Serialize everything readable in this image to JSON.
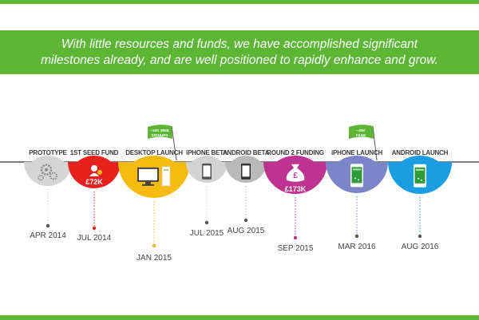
{
  "banner": {
    "line1": "With little resources and funds, we have accomplished significant",
    "line2": "milestones already, and are well positioned to rapidly enhance and grow."
  },
  "milestones": [
    {
      "label": "PROTOTYPE",
      "date": "APR 2014",
      "color": "#d5d5d5",
      "icon": "gears-icon"
    },
    {
      "label": "1ST SEED FUND",
      "date": "JUL 2014",
      "color": "#e8211f",
      "icon": "money-bag-person-icon",
      "amount": "£72K"
    },
    {
      "label": "DESKTOP LAUNCH",
      "date": "JAN 2015",
      "color": "#f7bb10",
      "icon": "desktop-computer-icon",
      "flag": [
        "~10K WEB",
        "SIGNUPS"
      ]
    },
    {
      "label": "iPHONE BETA",
      "date": "JUL 2015",
      "color": "#d3d3d3",
      "icon": "phone-icon"
    },
    {
      "label": "ANDROID BETA",
      "date": "AUG 2015",
      "color": "#b9b9b9",
      "icon": "phone-dark-icon"
    },
    {
      "label": "ROUND 2 FUNDING",
      "date": "SEP 2015",
      "color": "#bf3390",
      "icon": "money-bag-icon",
      "amount": "£173K"
    },
    {
      "label": "iPHONE LAUNCH",
      "date": "MAR 2016",
      "color": "#7b86c8",
      "icon": "iphone-app-icon",
      "flag": [
        "~30K",
        "FANS"
      ]
    },
    {
      "label": "ANDROID LAUNCH",
      "date": "AUG 2016",
      "color": "#1b9de2",
      "icon": "android-app-icon"
    }
  ],
  "colors": {
    "green": "#5cb535",
    "dark": "#4a4a4a"
  }
}
